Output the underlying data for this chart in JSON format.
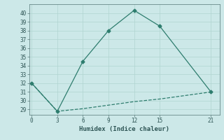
{
  "line1_x": [
    0,
    3,
    6,
    9,
    12,
    15,
    21
  ],
  "line1_y": [
    32,
    28.8,
    34.5,
    38,
    40.3,
    38.5,
    31
  ],
  "line2_x": [
    0,
    3,
    6,
    9,
    12,
    15,
    21
  ],
  "line2_y": [
    32,
    28.8,
    29.1,
    29.5,
    29.9,
    30.2,
    31
  ],
  "line_color": "#2e7d6e",
  "bg_color": "#cce8e8",
  "grid_color": "#b0d4d0",
  "xlabel": "Humidex (Indice chaleur)",
  "xticks": [
    0,
    3,
    6,
    9,
    12,
    15,
    21
  ],
  "yticks": [
    29,
    30,
    31,
    32,
    33,
    34,
    35,
    36,
    37,
    38,
    39,
    40
  ],
  "ylim": [
    28.4,
    41.0
  ],
  "xlim": [
    -0.3,
    22.0
  ]
}
